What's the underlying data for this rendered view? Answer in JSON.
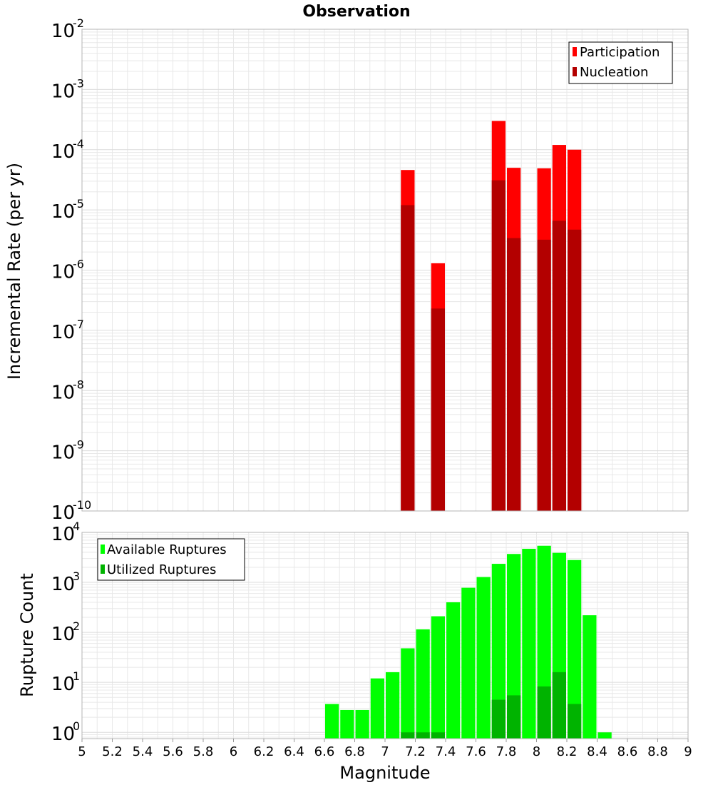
{
  "colors": {
    "participation": "#ff0000",
    "nucleation": "#b30000",
    "available": "#00ff00",
    "utilized": "#00b300",
    "grid": "#e8e8e8",
    "frame": "#b5b5b5"
  },
  "chart_data": [
    {
      "type": "bar",
      "title": "Observation",
      "ylabel": "Incremental Rate (per yr)",
      "yscale": "log",
      "ylim": [
        1e-10,
        0.01
      ],
      "xlim": [
        5,
        9
      ],
      "bin_width": 0.1,
      "legend": {
        "position": "top-right",
        "entries": [
          "Participation",
          "Nucleation"
        ]
      },
      "series": [
        {
          "name": "Participation",
          "x": [
            7.15,
            7.35,
            7.75,
            7.85,
            8.05,
            8.15,
            8.25
          ],
          "values": [
            4.6e-05,
            1.3e-06,
            0.0003,
            5e-05,
            4.9e-05,
            0.00012,
            0.0001
          ]
        },
        {
          "name": "Nucleation",
          "x": [
            7.15,
            7.35,
            7.75,
            7.85,
            8.05,
            8.15,
            8.25
          ],
          "values": [
            1.2e-05,
            2.3e-07,
            3.1e-05,
            3.4e-06,
            3.2e-06,
            6.6e-06,
            4.7e-06
          ]
        }
      ]
    },
    {
      "type": "bar",
      "xlabel": "Magnitude",
      "ylabel": "Rupture Count",
      "yscale": "log",
      "ylim": [
        0.75,
        10000
      ],
      "xlim": [
        5,
        9
      ],
      "bin_width": 0.1,
      "legend": {
        "position": "top-left",
        "entries": [
          "Available Ruptures",
          "Utilized Ruptures"
        ]
      },
      "x_ticks": [
        "5",
        "5.2",
        "5.4",
        "5.6",
        "5.8",
        "6",
        "6.2",
        "6.4",
        "6.6",
        "6.8",
        "7",
        "7.2",
        "7.4",
        "7.6",
        "7.8",
        "8",
        "8.2",
        "8.4",
        "8.6",
        "8.8",
        "9"
      ],
      "series": [
        {
          "name": "Available Ruptures",
          "x": [
            6.65,
            6.75,
            6.85,
            6.95,
            7.05,
            7.15,
            7.25,
            7.35,
            7.45,
            7.55,
            7.65,
            7.75,
            7.85,
            7.95,
            8.05,
            8.15,
            8.25,
            8.35,
            8.45
          ],
          "values": [
            3.7,
            2.8,
            2.8,
            12,
            16,
            48,
            115,
            210,
            400,
            780,
            1280,
            2350,
            3700,
            4700,
            5400,
            3900,
            2800,
            220,
            1
          ]
        },
        {
          "name": "Utilized Ruptures",
          "x": [
            7.15,
            7.25,
            7.35,
            7.75,
            7.85,
            8.05,
            8.15,
            8.25
          ],
          "values": [
            1,
            1,
            1,
            4.5,
            5.5,
            8.3,
            16,
            3.7
          ]
        }
      ]
    }
  ]
}
